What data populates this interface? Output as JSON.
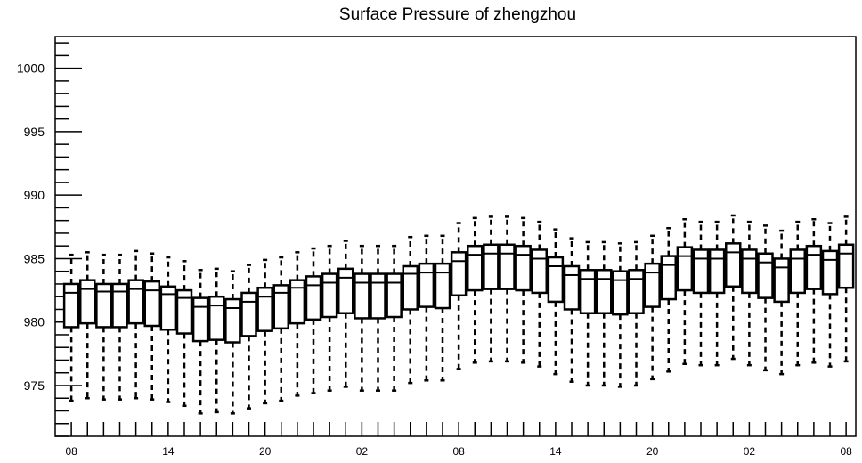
{
  "chart_data": {
    "type": "box",
    "title": "Surface Pressure of zhengzhou",
    "xlabel": "",
    "ylabel": "",
    "ylim": [
      971,
      1002.5
    ],
    "y_ticks": [
      975,
      980,
      985,
      990,
      995,
      1000
    ],
    "x_tick_labels": [
      "08",
      "14",
      "20",
      "02",
      "08",
      "14",
      "20",
      "02",
      "08"
    ],
    "x_tick_label_positions": [
      0,
      6,
      12,
      18,
      24,
      30,
      36,
      42,
      48
    ],
    "x_range": [
      -1,
      48.6
    ],
    "grid": false,
    "boxes": [
      {
        "x": 0,
        "whisker_low": 973.8,
        "q1": 979.6,
        "median": 982.3,
        "q3": 983.0,
        "whisker_high": 985.3
      },
      {
        "x": 1,
        "whisker_low": 974.0,
        "q1": 979.9,
        "median": 982.6,
        "q3": 983.3,
        "whisker_high": 985.5
      },
      {
        "x": 2,
        "whisker_low": 973.9,
        "q1": 979.6,
        "median": 982.4,
        "q3": 983.0,
        "whisker_high": 985.3
      },
      {
        "x": 3,
        "whisker_low": 973.9,
        "q1": 979.6,
        "median": 982.4,
        "q3": 983.0,
        "whisker_high": 985.3
      },
      {
        "x": 4,
        "whisker_low": 974.0,
        "q1": 979.9,
        "median": 982.6,
        "q3": 983.3,
        "whisker_high": 985.6
      },
      {
        "x": 5,
        "whisker_low": 973.9,
        "q1": 979.7,
        "median": 982.5,
        "q3": 983.2,
        "whisker_high": 985.4
      },
      {
        "x": 6,
        "whisker_low": 973.7,
        "q1": 979.4,
        "median": 982.2,
        "q3": 982.8,
        "whisker_high": 985.1
      },
      {
        "x": 7,
        "whisker_low": 973.4,
        "q1": 979.1,
        "median": 981.9,
        "q3": 982.5,
        "whisker_high": 984.8
      },
      {
        "x": 8,
        "whisker_low": 972.8,
        "q1": 978.5,
        "median": 981.2,
        "q3": 981.9,
        "whisker_high": 984.1
      },
      {
        "x": 9,
        "whisker_low": 972.9,
        "q1": 978.6,
        "median": 981.3,
        "q3": 982.0,
        "whisker_high": 984.2
      },
      {
        "x": 10,
        "whisker_low": 972.8,
        "q1": 978.4,
        "median": 981.1,
        "q3": 981.8,
        "whisker_high": 984.0
      },
      {
        "x": 11,
        "whisker_low": 973.2,
        "q1": 978.9,
        "median": 981.6,
        "q3": 982.3,
        "whisker_high": 984.5
      },
      {
        "x": 12,
        "whisker_low": 973.6,
        "q1": 979.3,
        "median": 982.0,
        "q3": 982.7,
        "whisker_high": 984.9
      },
      {
        "x": 13,
        "whisker_low": 973.8,
        "q1": 979.5,
        "median": 982.3,
        "q3": 982.9,
        "whisker_high": 985.1
      },
      {
        "x": 14,
        "whisker_low": 974.2,
        "q1": 979.9,
        "median": 982.7,
        "q3": 983.3,
        "whisker_high": 985.5
      },
      {
        "x": 15,
        "whisker_low": 974.4,
        "q1": 980.2,
        "median": 982.9,
        "q3": 983.6,
        "whisker_high": 985.8
      },
      {
        "x": 16,
        "whisker_low": 974.6,
        "q1": 980.4,
        "median": 983.1,
        "q3": 983.8,
        "whisker_high": 986.0
      },
      {
        "x": 17,
        "whisker_low": 974.9,
        "q1": 980.7,
        "median": 983.5,
        "q3": 984.2,
        "whisker_high": 986.4
      },
      {
        "x": 18,
        "whisker_low": 974.6,
        "q1": 980.3,
        "median": 983.1,
        "q3": 983.8,
        "whisker_high": 986.0
      },
      {
        "x": 19,
        "whisker_low": 974.6,
        "q1": 980.3,
        "median": 983.1,
        "q3": 983.8,
        "whisker_high": 986.0
      },
      {
        "x": 20,
        "whisker_low": 974.6,
        "q1": 980.4,
        "median": 983.1,
        "q3": 983.8,
        "whisker_high": 986.0
      },
      {
        "x": 21,
        "whisker_low": 975.2,
        "q1": 981.0,
        "median": 983.8,
        "q3": 984.4,
        "whisker_high": 986.7
      },
      {
        "x": 22,
        "whisker_low": 975.4,
        "q1": 981.2,
        "median": 983.9,
        "q3": 984.6,
        "whisker_high": 986.8
      },
      {
        "x": 23,
        "whisker_low": 975.4,
        "q1": 981.1,
        "median": 983.9,
        "q3": 984.6,
        "whisker_high": 986.8
      },
      {
        "x": 24,
        "whisker_low": 976.3,
        "q1": 982.1,
        "median": 984.8,
        "q3": 985.5,
        "whisker_high": 987.8
      },
      {
        "x": 25,
        "whisker_low": 976.8,
        "q1": 982.5,
        "median": 985.3,
        "q3": 986.0,
        "whisker_high": 988.2
      },
      {
        "x": 26,
        "whisker_low": 976.9,
        "q1": 982.6,
        "median": 985.4,
        "q3": 986.1,
        "whisker_high": 988.3
      },
      {
        "x": 27,
        "whisker_low": 976.9,
        "q1": 982.6,
        "median": 985.4,
        "q3": 986.1,
        "whisker_high": 988.3
      },
      {
        "x": 28,
        "whisker_low": 976.8,
        "q1": 982.5,
        "median": 985.3,
        "q3": 986.0,
        "whisker_high": 988.2
      },
      {
        "x": 29,
        "whisker_low": 976.5,
        "q1": 982.3,
        "median": 985.0,
        "q3": 985.7,
        "whisker_high": 987.9
      },
      {
        "x": 30,
        "whisker_low": 975.9,
        "q1": 981.6,
        "median": 984.4,
        "q3": 985.1,
        "whisker_high": 987.3
      },
      {
        "x": 31,
        "whisker_low": 975.3,
        "q1": 981.0,
        "median": 983.7,
        "q3": 984.4,
        "whisker_high": 986.6
      },
      {
        "x": 32,
        "whisker_low": 975.0,
        "q1": 980.7,
        "median": 983.4,
        "q3": 984.1,
        "whisker_high": 986.3
      },
      {
        "x": 33,
        "whisker_low": 975.0,
        "q1": 980.7,
        "median": 983.4,
        "q3": 984.1,
        "whisker_high": 986.3
      },
      {
        "x": 34,
        "whisker_low": 974.9,
        "q1": 980.6,
        "median": 983.3,
        "q3": 984.0,
        "whisker_high": 986.2
      },
      {
        "x": 35,
        "whisker_low": 975.0,
        "q1": 980.7,
        "median": 983.4,
        "q3": 984.1,
        "whisker_high": 986.3
      },
      {
        "x": 36,
        "whisker_low": 975.5,
        "q1": 981.2,
        "median": 983.9,
        "q3": 984.6,
        "whisker_high": 986.8
      },
      {
        "x": 37,
        "whisker_low": 976.1,
        "q1": 981.8,
        "median": 984.5,
        "q3": 985.2,
        "whisker_high": 987.4
      },
      {
        "x": 38,
        "whisker_low": 976.7,
        "q1": 982.5,
        "median": 985.2,
        "q3": 985.9,
        "whisker_high": 988.1
      },
      {
        "x": 39,
        "whisker_low": 976.6,
        "q1": 982.3,
        "median": 985.0,
        "q3": 985.7,
        "whisker_high": 987.9
      },
      {
        "x": 40,
        "whisker_low": 976.6,
        "q1": 982.3,
        "median": 985.0,
        "q3": 985.7,
        "whisker_high": 987.9
      },
      {
        "x": 41,
        "whisker_low": 977.1,
        "q1": 982.8,
        "median": 985.5,
        "q3": 986.2,
        "whisker_high": 988.4
      },
      {
        "x": 42,
        "whisker_low": 976.6,
        "q1": 982.3,
        "median": 985.0,
        "q3": 985.7,
        "whisker_high": 987.9
      },
      {
        "x": 43,
        "whisker_low": 976.2,
        "q1": 981.9,
        "median": 984.7,
        "q3": 985.4,
        "whisker_high": 987.6
      },
      {
        "x": 44,
        "whisker_low": 975.9,
        "q1": 981.6,
        "median": 984.3,
        "q3": 985.0,
        "whisker_high": 987.2
      },
      {
        "x": 45,
        "whisker_low": 976.6,
        "q1": 982.3,
        "median": 985.0,
        "q3": 985.7,
        "whisker_high": 987.9
      },
      {
        "x": 46,
        "whisker_low": 976.8,
        "q1": 982.6,
        "median": 985.3,
        "q3": 986.0,
        "whisker_high": 988.1
      },
      {
        "x": 47,
        "whisker_low": 976.5,
        "q1": 982.2,
        "median": 984.9,
        "q3": 985.6,
        "whisker_high": 987.8
      },
      {
        "x": 48,
        "whisker_low": 976.9,
        "q1": 982.7,
        "median": 985.4,
        "q3": 986.1,
        "whisker_high": 988.3
      }
    ]
  }
}
